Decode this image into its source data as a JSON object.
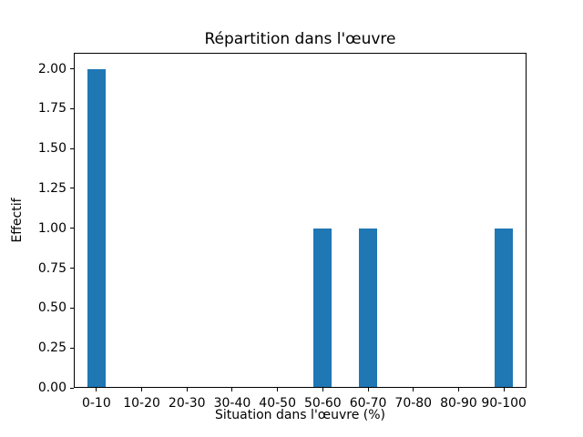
{
  "chart_data": {
    "type": "bar",
    "title": "Répartition dans l'œuvre",
    "xlabel": "Situation dans l'œuvre (%)",
    "ylabel": "Effectif",
    "categories": [
      "0-10",
      "10-20",
      "20-30",
      "30-40",
      "40-50",
      "50-60",
      "60-70",
      "70-80",
      "80-90",
      "90-100"
    ],
    "values": [
      2,
      0,
      0,
      0,
      0,
      1,
      1,
      0,
      0,
      1
    ],
    "yticks": [
      "0.00",
      "0.25",
      "0.50",
      "0.75",
      "1.00",
      "1.25",
      "1.50",
      "1.75",
      "2.00"
    ],
    "ylim": [
      0,
      2.1
    ],
    "bar_color": "#1f77b4",
    "frame_color": "#000000",
    "background_color": "#ffffff",
    "legend_position": "none",
    "grid": false
  }
}
